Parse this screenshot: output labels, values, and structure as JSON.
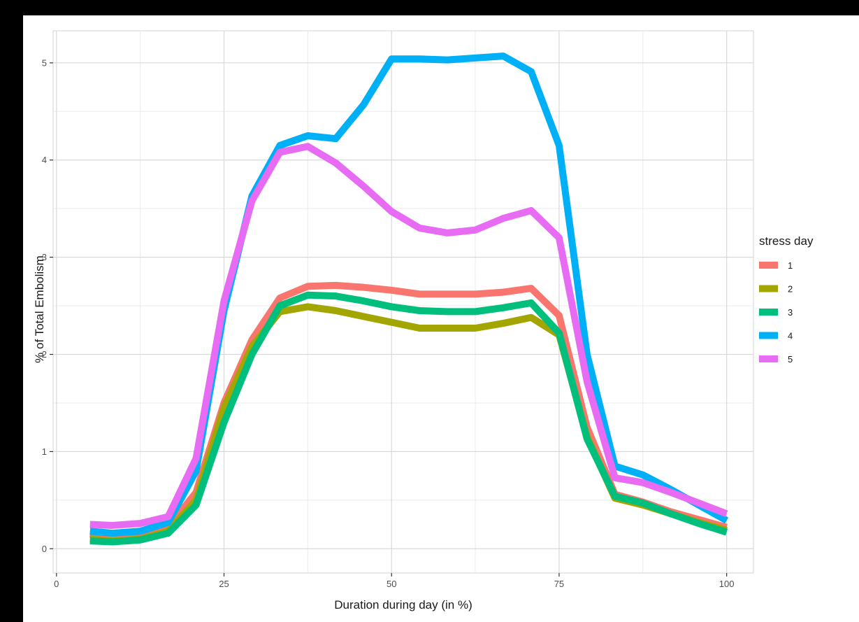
{
  "chart_data": {
    "type": "line",
    "xlabel": "Duration during day (in %)",
    "ylabel": "% of Total Embolism",
    "xlim": [
      -0.5,
      104
    ],
    "ylim": [
      -0.25,
      5.33
    ],
    "x_ticks": [
      0,
      25,
      50,
      75,
      100
    ],
    "x_tick_labels": [
      "0",
      "25",
      "50",
      "75",
      "100"
    ],
    "y_ticks": [
      0,
      1,
      2,
      3,
      4,
      5
    ],
    "y_tick_labels": [
      "0",
      "1",
      "2",
      "3",
      "4",
      "5"
    ],
    "grid": true,
    "legend_title": "stress day",
    "legend_position": "right",
    "x": [
      5,
      8.33,
      12.5,
      16.67,
      20.83,
      25,
      29.17,
      33.33,
      37.5,
      41.67,
      45.83,
      50,
      54.17,
      58.33,
      62.5,
      66.67,
      70.83,
      75,
      79.17,
      83.33,
      87.5,
      91.67,
      95.83,
      100
    ],
    "series": [
      {
        "name": "1",
        "color": "#F8766D",
        "values": [
          0.15,
          0.12,
          0.13,
          0.22,
          0.58,
          1.5,
          2.15,
          2.58,
          2.7,
          2.71,
          2.69,
          2.66,
          2.62,
          2.62,
          2.62,
          2.64,
          2.68,
          2.4,
          1.25,
          0.56,
          0.48,
          0.38,
          0.3,
          0.22
        ]
      },
      {
        "name": "2",
        "color": "#A3A500",
        "values": [
          0.1,
          0.08,
          0.1,
          0.18,
          0.5,
          1.45,
          2.08,
          2.44,
          2.49,
          2.45,
          2.39,
          2.33,
          2.27,
          2.27,
          2.27,
          2.32,
          2.38,
          2.2,
          1.15,
          0.52,
          0.45,
          0.36,
          0.27,
          0.19
        ]
      },
      {
        "name": "3",
        "color": "#00BF7D",
        "values": [
          0.08,
          0.07,
          0.09,
          0.16,
          0.45,
          1.3,
          2.0,
          2.5,
          2.61,
          2.6,
          2.55,
          2.49,
          2.45,
          2.44,
          2.44,
          2.48,
          2.53,
          2.22,
          1.13,
          0.54,
          0.47,
          0.36,
          0.26,
          0.17
        ]
      },
      {
        "name": "4",
        "color": "#00B0F6",
        "values": [
          0.18,
          0.16,
          0.18,
          0.27,
          0.8,
          2.45,
          3.63,
          4.15,
          4.25,
          4.22,
          4.57,
          5.04,
          5.04,
          5.03,
          5.05,
          5.07,
          4.91,
          4.15,
          2.0,
          0.85,
          0.76,
          0.61,
          0.45,
          0.29
        ]
      },
      {
        "name": "5",
        "color": "#E76BF3",
        "values": [
          0.25,
          0.24,
          0.26,
          0.33,
          0.93,
          2.55,
          3.58,
          4.08,
          4.14,
          3.97,
          3.73,
          3.47,
          3.3,
          3.25,
          3.28,
          3.4,
          3.48,
          3.2,
          1.72,
          0.73,
          0.68,
          0.58,
          0.47,
          0.36
        ]
      }
    ]
  }
}
